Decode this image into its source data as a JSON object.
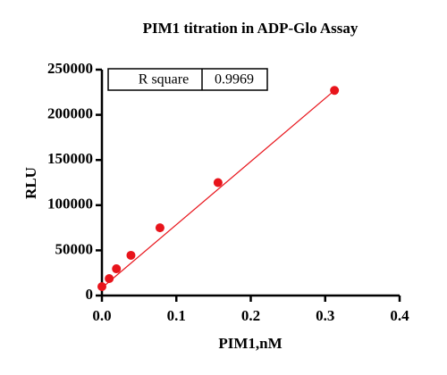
{
  "chart_data": {
    "type": "scatter",
    "title": "PIM1 titration in ADP-Glo Assay",
    "x_label": "PIM1,nM",
    "y_label": "RLU",
    "series": [
      {
        "color": "#e8141b",
        "x": [
          0,
          0.0098,
          0.0195,
          0.039,
          0.078,
          0.156,
          0.3125
        ],
        "values": [
          9900,
          18800,
          29600,
          44500,
          75000,
          125000,
          227000
        ]
      }
    ],
    "fit_line": {
      "color": "#e8141b",
      "x": [
        0,
        0.3125
      ],
      "values": [
        8500,
        227000
      ]
    },
    "annotation_table": [
      "R square",
      "0.9969"
    ],
    "xlim": [
      0,
      0.4
    ],
    "ylim": [
      0,
      250000
    ],
    "xticks": [
      {
        "value": 0,
        "label": "0.0"
      },
      0.1,
      0.2,
      0.3,
      0.4
    ],
    "yticks": [
      0,
      50000,
      100000,
      150000,
      200000,
      250000
    ]
  }
}
